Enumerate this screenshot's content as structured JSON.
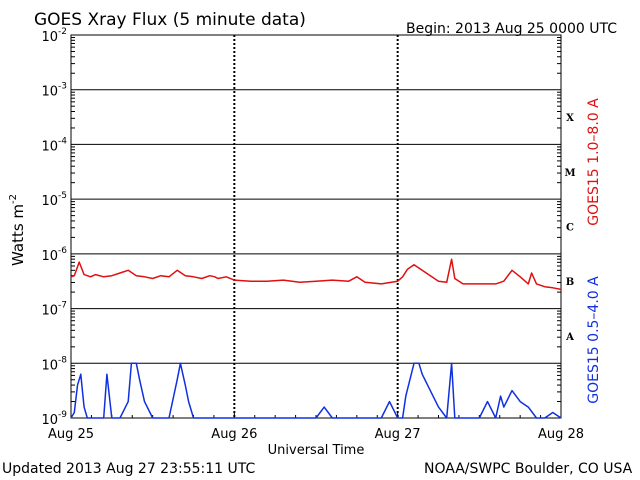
{
  "chart_data": {
    "type": "line",
    "title": "GOES Xray Flux (5 minute data)",
    "begin_text": "Begin:  2013 Aug 25 0000 UTC",
    "ylabel_main": "Watts m",
    "ylabel_sup": "-2",
    "xlabel": "Universal Time",
    "x_ticks": [
      "Aug 25",
      "Aug 26",
      "Aug 27",
      "Aug 28"
    ],
    "x_range_days": [
      0,
      3
    ],
    "y_scale": "log",
    "ylim_exponent": [
      -9,
      -2
    ],
    "y_ticks": [
      {
        "base": "10",
        "exp": "-2"
      },
      {
        "base": "10",
        "exp": "-3"
      },
      {
        "base": "10",
        "exp": "-4"
      },
      {
        "base": "10",
        "exp": "-5"
      },
      {
        "base": "10",
        "exp": "-6"
      },
      {
        "base": "10",
        "exp": "-7"
      },
      {
        "base": "10",
        "exp": "-8"
      },
      {
        "base": "10",
        "exp": "-9"
      }
    ],
    "flare_classes": [
      {
        "label": "X",
        "exp": -3.5
      },
      {
        "label": "M",
        "exp": -4.5
      },
      {
        "label": "C",
        "exp": -5.5
      },
      {
        "label": "B",
        "exp": -6.5
      },
      {
        "label": "A",
        "exp": -7.5
      }
    ],
    "series": [
      {
        "name": "GOES15 1.0–8.0 A",
        "color": "#e01010",
        "x": [
          0.0,
          0.02,
          0.05,
          0.08,
          0.1,
          0.12,
          0.15,
          0.2,
          0.25,
          0.3,
          0.35,
          0.4,
          0.45,
          0.5,
          0.55,
          0.6,
          0.65,
          0.7,
          0.75,
          0.8,
          0.85,
          0.88,
          0.9,
          0.95,
          1.0,
          1.1,
          1.2,
          1.3,
          1.4,
          1.5,
          1.6,
          1.7,
          1.75,
          1.8,
          1.9,
          2.0,
          2.03,
          2.06,
          2.1,
          2.15,
          2.2,
          2.25,
          2.3,
          2.33,
          2.35,
          2.4,
          2.5,
          2.6,
          2.65,
          2.7,
          2.75,
          2.8,
          2.82,
          2.85,
          2.9,
          2.95,
          3.0
        ],
        "log_y": [
          -6.42,
          -6.4,
          -6.15,
          -6.38,
          -6.4,
          -6.42,
          -6.38,
          -6.42,
          -6.4,
          -6.35,
          -6.3,
          -6.4,
          -6.42,
          -6.45,
          -6.4,
          -6.42,
          -6.3,
          -6.4,
          -6.42,
          -6.45,
          -6.4,
          -6.42,
          -6.45,
          -6.42,
          -6.48,
          -6.5,
          -6.5,
          -6.48,
          -6.52,
          -6.5,
          -6.48,
          -6.5,
          -6.42,
          -6.52,
          -6.55,
          -6.5,
          -6.42,
          -6.28,
          -6.2,
          -6.3,
          -6.4,
          -6.5,
          -6.52,
          -6.1,
          -6.45,
          -6.55,
          -6.55,
          -6.55,
          -6.5,
          -6.3,
          -6.42,
          -6.55,
          -6.35,
          -6.55,
          -6.6,
          -6.62,
          -6.65
        ]
      },
      {
        "name": "GOES15 0.5–4.0 A",
        "color": "#1030e0",
        "x": [
          0.0,
          0.02,
          0.04,
          0.06,
          0.07,
          0.08,
          0.1,
          0.12,
          0.15,
          0.2,
          0.22,
          0.25,
          0.28,
          0.3,
          0.35,
          0.37,
          0.4,
          0.42,
          0.45,
          0.5,
          0.6,
          0.65,
          0.67,
          0.7,
          0.72,
          0.75,
          0.8,
          0.85,
          0.9,
          1.0,
          1.2,
          1.4,
          1.5,
          1.55,
          1.6,
          1.7,
          1.8,
          1.9,
          1.95,
          2.0,
          2.03,
          2.05,
          2.1,
          2.13,
          2.15,
          2.2,
          2.25,
          2.3,
          2.33,
          2.35,
          2.4,
          2.5,
          2.55,
          2.6,
          2.63,
          2.65,
          2.7,
          2.75,
          2.8,
          2.85,
          2.9,
          2.95,
          3.0
        ],
        "log_y": [
          -9.0,
          -8.9,
          -8.4,
          -8.2,
          -8.5,
          -8.8,
          -9.0,
          -9.0,
          -9.0,
          -9.0,
          -8.2,
          -9.0,
          -9.0,
          -9.0,
          -8.7,
          -8.0,
          -8.0,
          -8.3,
          -8.7,
          -9.0,
          -9.0,
          -8.3,
          -8.0,
          -8.4,
          -8.7,
          -9.0,
          -9.0,
          -9.0,
          -9.0,
          -9.0,
          -9.0,
          -9.0,
          -9.0,
          -8.8,
          -9.0,
          -9.0,
          -9.0,
          -9.0,
          -8.7,
          -9.0,
          -9.0,
          -8.6,
          -8.0,
          -8.0,
          -8.2,
          -8.5,
          -8.8,
          -9.0,
          -8.0,
          -9.0,
          -9.0,
          -9.0,
          -8.7,
          -9.0,
          -8.6,
          -8.8,
          -8.5,
          -8.7,
          -8.8,
          -9.0,
          -9.0,
          -8.9,
          -9.0
        ]
      }
    ]
  },
  "footer": {
    "updated": "Updated 2013 Aug 27 23:55:11 UTC",
    "source": "NOAA/SWPC Boulder, CO USA"
  }
}
